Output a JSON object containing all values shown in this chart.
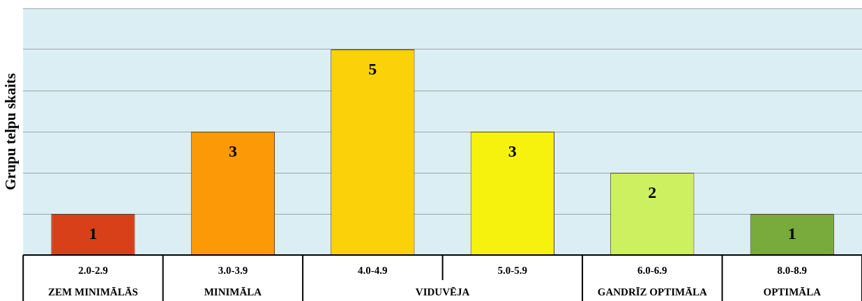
{
  "chart_data": {
    "type": "bar",
    "ylabel": "Grupu telpu skaits",
    "categories": [
      "2.0-2.9",
      "3.0-3.9",
      "4.0-4.9",
      "5.0-5.9",
      "6.0-6.9",
      "8.0-8.9"
    ],
    "values": [
      1,
      3,
      5,
      3,
      2,
      1
    ],
    "colors": [
      "#d8401a",
      "#fb9a06",
      "#fbd20a",
      "#f6f20e",
      "#ccf060",
      "#78aa3c"
    ],
    "ylim": [
      0,
      6
    ],
    "grid": "y",
    "tick_labels": "x",
    "data_labels": true,
    "legend": false,
    "annotations": [
      "ZEM MINIMĀLĀS",
      "MINIMĀLA",
      "VIDUVĒJA",
      "GANDRĪZ OPTIMĀLA",
      "OPTIMĀLA"
    ]
  }
}
